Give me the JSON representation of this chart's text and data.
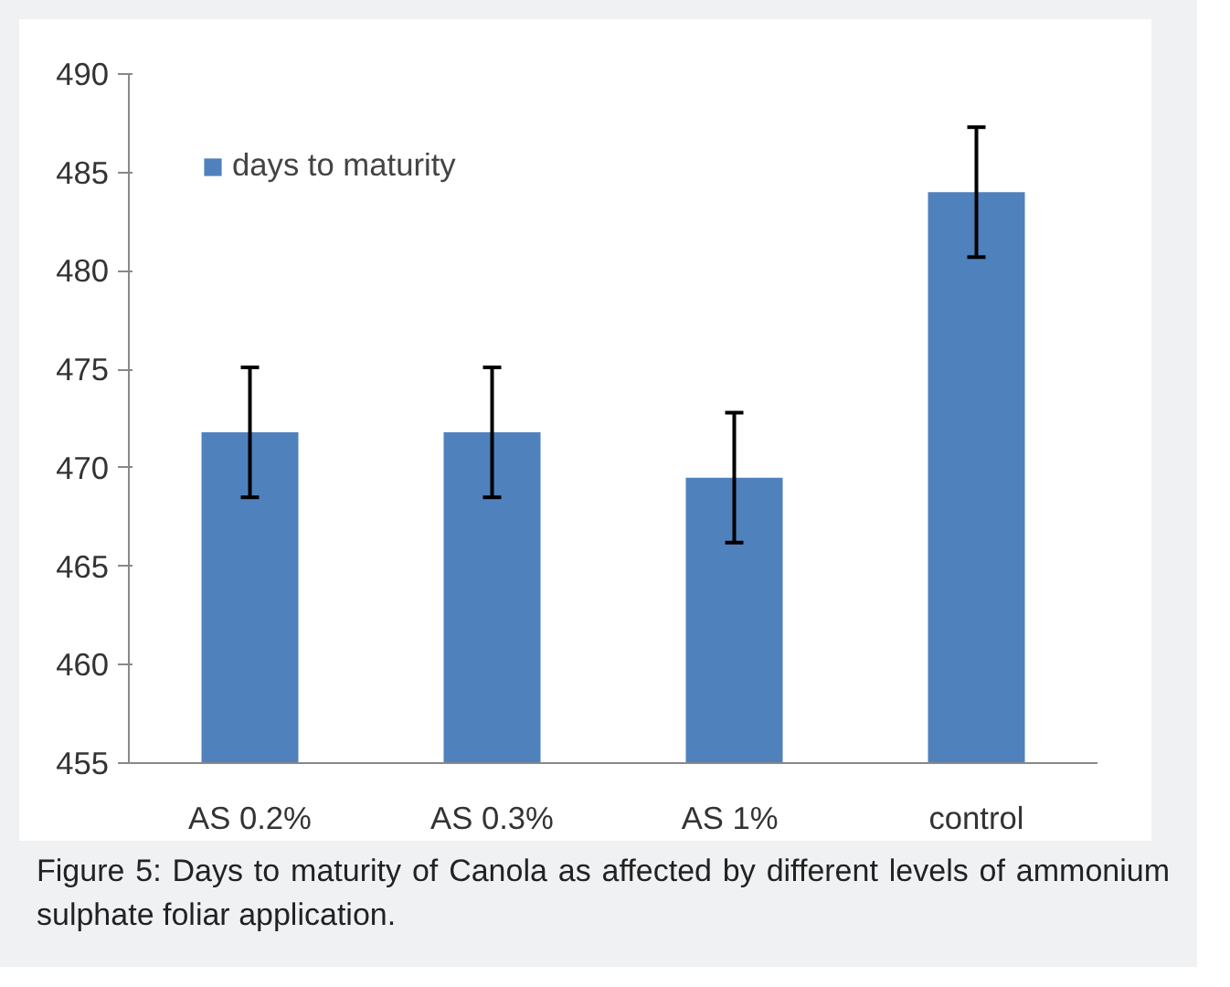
{
  "chart_data": {
    "type": "bar",
    "categories": [
      "AS 0.2%",
      "AS 0.3%",
      "AS  1%",
      "control"
    ],
    "series": [
      {
        "name": "days to maturity",
        "color": "#4f81bd",
        "values": [
          471.8,
          471.8,
          469.5,
          484.0
        ],
        "errors": [
          3.3,
          3.3,
          3.3,
          3.3
        ]
      }
    ],
    "ylim": [
      455,
      490
    ],
    "yticks": [
      455,
      460,
      465,
      470,
      475,
      480,
      485,
      490
    ],
    "grid": false,
    "legend": "top left",
    "annotations": [
      "Figure 5: Days to maturity of Canola as affected by different levels of ammonium sulphate foliar application."
    ]
  }
}
